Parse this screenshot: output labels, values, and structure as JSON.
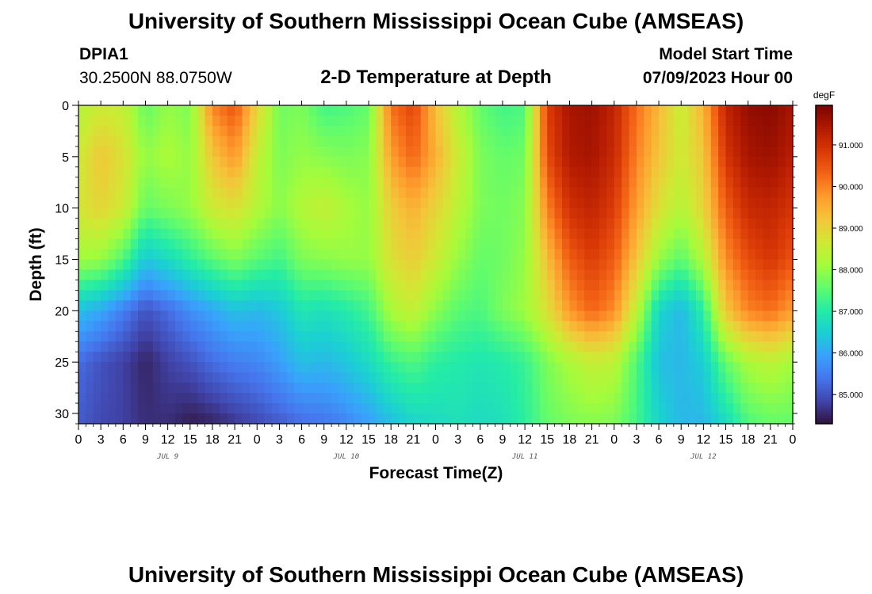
{
  "page": {
    "title": "University of Southern Mississippi Ocean Cube (AMSEAS)",
    "station": "DPIA1",
    "coords": "30.2500N  88.0750W",
    "subtitle": "2-D Temperature at Depth",
    "model_start_label": "Model Start Time",
    "model_start_value": "07/09/2023 Hour 00",
    "footer_title": "University of Southern Mississippi Ocean Cube (AMSEAS)"
  },
  "colors": {
    "scale": [
      "#30123b",
      "#4145ab",
      "#4675ed",
      "#39a2fc",
      "#1bcfd4",
      "#24eca6",
      "#61fc6c",
      "#a4fc3b",
      "#d1e834",
      "#f3c63a",
      "#fe9b2d",
      "#f36315",
      "#d93806",
      "#b11901",
      "#7a0402"
    ]
  },
  "chart_data": {
    "type": "heatmap",
    "title": "2-D Temperature at Depth",
    "xlabel": "Forecast Time(Z)",
    "ylabel": "Depth (ft)",
    "x_ticks": [
      "0",
      "3",
      "6",
      "9",
      "12",
      "15",
      "18",
      "21",
      "0",
      "3",
      "6",
      "9",
      "12",
      "15",
      "18",
      "21",
      "0",
      "3",
      "6",
      "9",
      "12",
      "15",
      "18",
      "21",
      "0",
      "3",
      "6",
      "9",
      "12",
      "15",
      "18",
      "21",
      "0"
    ],
    "x_hours_range": [
      0,
      96
    ],
    "day_labels": [
      {
        "label": "JUL 9",
        "hour": 12
      },
      {
        "label": "JUL 10",
        "hour": 36
      },
      {
        "label": "JUL 11",
        "hour": 60
      },
      {
        "label": "JUL 12",
        "hour": 84
      }
    ],
    "y_ticks": [
      0,
      5,
      10,
      15,
      20,
      25,
      30
    ],
    "y_range": [
      0,
      31
    ],
    "colorbar": {
      "unit": "degF",
      "range": [
        84.3,
        91.95
      ],
      "ticks": [
        "85.000",
        "86.000",
        "87.000",
        "88.000",
        "89.000",
        "90.000",
        "91.000"
      ]
    },
    "value_range": [
      84.3,
      91.95
    ],
    "depth_levels": [
      0,
      5,
      10,
      15,
      20,
      25,
      31
    ],
    "time_hours": [
      0,
      3,
      6,
      9,
      12,
      15,
      18,
      21,
      24,
      27,
      30,
      33,
      36,
      39,
      42,
      45,
      48,
      51,
      54,
      57,
      60,
      63,
      66,
      69,
      72,
      75,
      78,
      81,
      84,
      87,
      90,
      93,
      96
    ],
    "values": [
      [
        88.3,
        88.6,
        88.5,
        87.6,
        88.0,
        87.8,
        90.0,
        90.5,
        89.0,
        87.7,
        87.8,
        87.3,
        87.4,
        87.6,
        90.2,
        90.7,
        89.3,
        88.3,
        87.6,
        87.3,
        87.4,
        90.8,
        91.5,
        91.6,
        91.2,
        90.2,
        89.4,
        88.5,
        89.5,
        91.2,
        91.7,
        91.8,
        91.5
      ],
      [
        88.6,
        89.2,
        88.8,
        88.0,
        88.2,
        88.0,
        89.2,
        89.8,
        88.5,
        87.8,
        88.0,
        87.9,
        87.8,
        87.9,
        89.7,
        90.3,
        89.5,
        88.6,
        87.8,
        87.6,
        87.7,
        90.6,
        91.4,
        91.5,
        91.1,
        90.0,
        89.2,
        88.6,
        89.2,
        90.9,
        91.5,
        91.6,
        91.3
      ],
      [
        88.7,
        89.0,
        88.6,
        87.6,
        87.8,
        88.0,
        88.6,
        88.8,
        88.3,
        87.9,
        88.3,
        88.5,
        88.2,
        88.0,
        89.1,
        89.5,
        89.0,
        88.4,
        87.8,
        87.7,
        87.9,
        90.0,
        91.0,
        91.2,
        90.8,
        89.7,
        88.8,
        88.3,
        89.0,
        90.4,
        91.1,
        91.2,
        90.9
      ],
      [
        88.1,
        88.0,
        87.4,
        86.4,
        86.7,
        87.1,
        87.5,
        87.8,
        87.5,
        87.3,
        87.8,
        87.9,
        88.0,
        88.0,
        88.8,
        89.1,
        88.6,
        88.0,
        87.6,
        87.7,
        88.0,
        89.3,
        90.4,
        90.8,
        90.4,
        89.2,
        88.0,
        87.5,
        88.3,
        89.9,
        90.6,
        90.9,
        90.5
      ],
      [
        86.3,
        86.0,
        85.5,
        85.0,
        85.3,
        85.7,
        86.0,
        86.3,
        86.2,
        86.4,
        86.9,
        86.8,
        87.0,
        87.3,
        88.2,
        88.5,
        87.9,
        87.5,
        87.4,
        87.8,
        88.1,
        88.8,
        89.8,
        90.3,
        89.9,
        88.4,
        86.6,
        86.2,
        87.1,
        89.2,
        90.0,
        90.2,
        89.7
      ],
      [
        85.3,
        85.0,
        84.8,
        84.5,
        84.8,
        85.0,
        85.3,
        85.5,
        85.6,
        85.9,
        86.3,
        86.2,
        86.4,
        86.7,
        87.2,
        87.4,
        87.1,
        87.0,
        86.9,
        87.0,
        87.2,
        87.8,
        88.2,
        88.5,
        88.4,
        87.4,
        86.3,
        86.2,
        86.5,
        87.6,
        88.2,
        88.4,
        88.1
      ],
      [
        85.1,
        84.9,
        84.8,
        84.6,
        84.6,
        84.4,
        84.5,
        84.7,
        84.9,
        85.1,
        85.3,
        85.4,
        85.6,
        85.9,
        86.3,
        86.6,
        86.7,
        86.8,
        86.7,
        86.8,
        87.1,
        87.6,
        87.8,
        87.9,
        87.8,
        87.3,
        86.6,
        86.2,
        86.2,
        86.7,
        87.4,
        87.6,
        87.6
      ]
    ]
  }
}
